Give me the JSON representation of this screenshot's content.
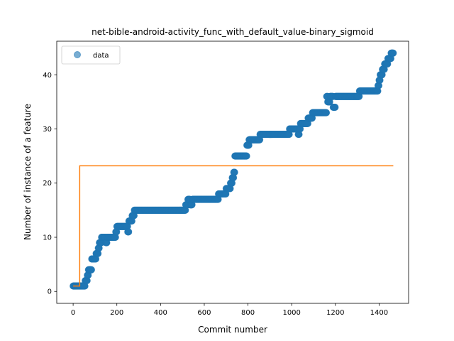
{
  "chart_data": {
    "type": "scatter",
    "title": "net-bible-android-activity_func_with_default_value-binary_sigmoid",
    "xlabel": "Commit number",
    "ylabel": "Number of instance of a feature",
    "xlim": [
      -75,
      1535
    ],
    "ylim": [
      -2.2,
      46.2
    ],
    "xticks": [
      0,
      200,
      400,
      600,
      800,
      1000,
      1200,
      1400
    ],
    "yticks": [
      0,
      10,
      20,
      30,
      40
    ],
    "legend": {
      "placement": "upper-left",
      "entries": [
        "data"
      ]
    },
    "grid": false,
    "series": [
      {
        "name": "data",
        "kind": "scatter",
        "color": "#1f77b4",
        "steps": [
          [
            0,
            1
          ],
          [
            35,
            1
          ],
          [
            55,
            2
          ],
          [
            65,
            3
          ],
          [
            70,
            4
          ],
          [
            85,
            6
          ],
          [
            95,
            6
          ],
          [
            105,
            7
          ],
          [
            115,
            8
          ],
          [
            120,
            9
          ],
          [
            130,
            10
          ],
          [
            150,
            9
          ],
          [
            155,
            10
          ],
          [
            195,
            11
          ],
          [
            200,
            12
          ],
          [
            215,
            12
          ],
          [
            250,
            11
          ],
          [
            255,
            13
          ],
          [
            270,
            14
          ],
          [
            280,
            15
          ],
          [
            515,
            16
          ],
          [
            525,
            17
          ],
          [
            535,
            16
          ],
          [
            545,
            17
          ],
          [
            665,
            18
          ],
          [
            700,
            19
          ],
          [
            720,
            20
          ],
          [
            728,
            21
          ],
          [
            735,
            22
          ],
          [
            740,
            25
          ],
          [
            795,
            27
          ],
          [
            805,
            28
          ],
          [
            855,
            29
          ],
          [
            990,
            30
          ],
          [
            1030,
            29
          ],
          [
            1035,
            30
          ],
          [
            1040,
            31
          ],
          [
            1075,
            32
          ],
          [
            1095,
            33
          ],
          [
            1160,
            36
          ],
          [
            1165,
            35
          ],
          [
            1175,
            36
          ],
          [
            1190,
            34
          ],
          [
            1200,
            36
          ],
          [
            1310,
            37
          ],
          [
            1395,
            38
          ],
          [
            1400,
            39
          ],
          [
            1405,
            40
          ],
          [
            1415,
            41
          ],
          [
            1425,
            42
          ],
          [
            1440,
            43
          ],
          [
            1455,
            44
          ],
          [
            1465,
            44
          ]
        ]
      },
      {
        "name": "",
        "kind": "line",
        "color": "#ff7f0e",
        "x": [
          0,
          30,
          30,
          1465
        ],
        "y": [
          1,
          1,
          23.2,
          23.2
        ]
      }
    ]
  }
}
